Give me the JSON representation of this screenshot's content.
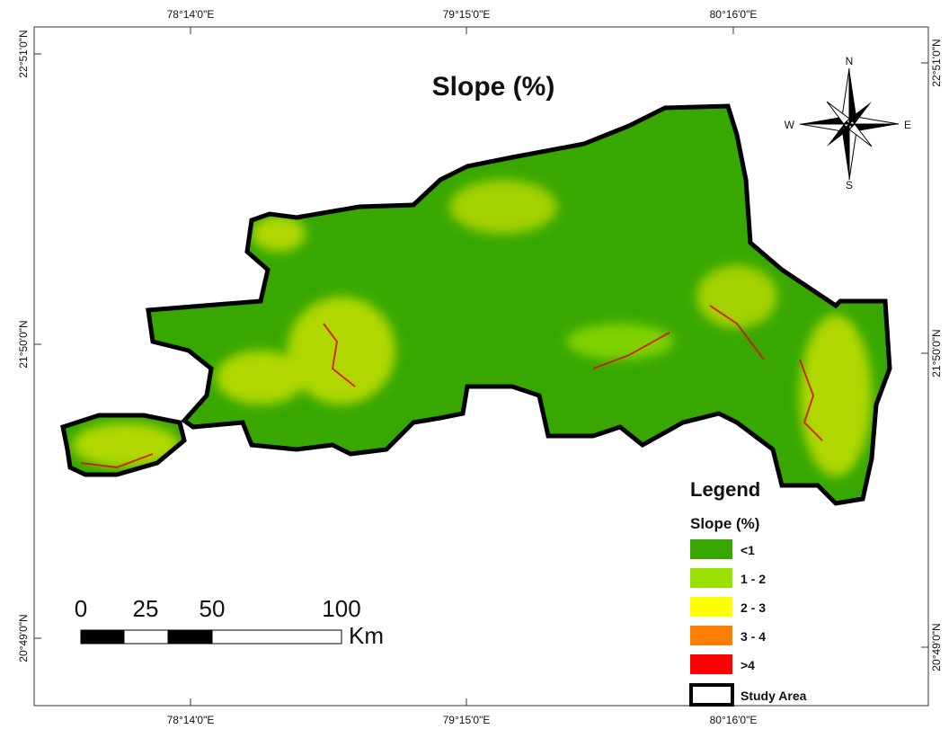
{
  "map": {
    "title": "Slope (%)",
    "graticule": {
      "top": [
        "78°14'0\"E",
        "79°15'0\"E",
        "80°16'0\"E"
      ],
      "bottom": [
        "78°14'0\"E",
        "79°15'0\"E",
        "80°16'0\"E"
      ],
      "left": [
        "22°51'0\"N",
        "21°50'0\"N",
        "20°49'0\"N"
      ],
      "right": [
        "22°51'0\"N",
        "21°50'0\"N",
        "20°49'0\"N"
      ]
    },
    "compass": {
      "n": "N",
      "e": "E",
      "s": "S",
      "w": "W"
    },
    "legend": {
      "title": "Legend",
      "subtitle": "Slope (%)",
      "items": [
        {
          "label": "<1",
          "color": "#38a800"
        },
        {
          "label": "1 - 2",
          "color": "#98e000"
        },
        {
          "label": "2 - 3",
          "color": "#ffff00"
        },
        {
          "label": "3 - 4",
          "color": "#ff8000"
        },
        {
          "label": ">4",
          "color": "#ff0000"
        }
      ],
      "study_area": "Study Area"
    },
    "scale_bar": {
      "labels": [
        "0",
        "25",
        "50",
        "100"
      ],
      "unit": "Km"
    }
  }
}
